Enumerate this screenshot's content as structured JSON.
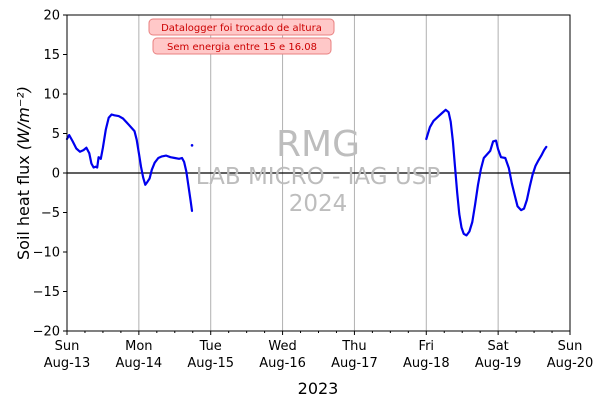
{
  "chart_data": {
    "type": "line",
    "title": "",
    "xlabel": "2023",
    "ylabel": "Soil heat flux",
    "ylabel_unit": "(W/m⁻²)",
    "ylim": [
      -20,
      20
    ],
    "yticks": [
      -20,
      -15,
      -10,
      -5,
      0,
      5,
      10,
      15,
      20
    ],
    "xlim_days": [
      0,
      7
    ],
    "xticks": [
      {
        "day": 0,
        "line1": "Sun",
        "line2": "Aug-13"
      },
      {
        "day": 1,
        "line1": "Mon",
        "line2": "Aug-14"
      },
      {
        "day": 2,
        "line1": "Tue",
        "line2": "Aug-15"
      },
      {
        "day": 3,
        "line1": "Wed",
        "line2": "Aug-16"
      },
      {
        "day": 4,
        "line1": "Thu",
        "line2": "Aug-17"
      },
      {
        "day": 5,
        "line1": "Fri",
        "line2": "Aug-18"
      },
      {
        "day": 6,
        "line1": "Sat",
        "line2": "Aug-19"
      },
      {
        "day": 7,
        "line1": "Sun",
        "line2": "Aug-20"
      }
    ],
    "grid": "vertical",
    "zero_line": true,
    "series": [
      {
        "color": "#0000ee",
        "segments": [
          [
            [
              0.0,
              4.3
            ],
            [
              0.03,
              4.8
            ],
            [
              0.08,
              4.0
            ],
            [
              0.13,
              3.1
            ],
            [
              0.18,
              2.7
            ],
            [
              0.23,
              2.9
            ],
            [
              0.27,
              3.2
            ],
            [
              0.31,
              2.5
            ],
            [
              0.34,
              1.2
            ],
            [
              0.37,
              0.7
            ],
            [
              0.4,
              0.8
            ],
            [
              0.42,
              0.7
            ],
            [
              0.44,
              2.0
            ],
            [
              0.47,
              1.8
            ],
            [
              0.5,
              3.2
            ],
            [
              0.54,
              5.5
            ],
            [
              0.58,
              7.0
            ],
            [
              0.62,
              7.4
            ],
            [
              0.66,
              7.3
            ],
            [
              0.72,
              7.2
            ],
            [
              0.78,
              6.9
            ],
            [
              0.84,
              6.3
            ],
            [
              0.9,
              5.7
            ],
            [
              0.94,
              5.3
            ],
            [
              0.97,
              4.2
            ],
            [
              1.0,
              2.5
            ],
            [
              1.03,
              0.8
            ],
            [
              1.06,
              -0.6
            ],
            [
              1.09,
              -1.5
            ],
            [
              1.12,
              -1.1
            ],
            [
              1.15,
              -0.7
            ],
            [
              1.18,
              0.4
            ],
            [
              1.22,
              1.3
            ],
            [
              1.27,
              1.9
            ],
            [
              1.32,
              2.1
            ],
            [
              1.38,
              2.2
            ],
            [
              1.44,
              2.0
            ],
            [
              1.5,
              1.9
            ],
            [
              1.56,
              1.8
            ],
            [
              1.6,
              1.9
            ],
            [
              1.63,
              1.4
            ],
            [
              1.66,
              0.2
            ],
            [
              1.69,
              -1.6
            ],
            [
              1.72,
              -3.5
            ],
            [
              1.74,
              -4.8
            ]
          ],
          [
            [
              1.74,
              3.5
            ]
          ],
          [
            [
              5.0,
              4.3
            ],
            [
              5.05,
              5.8
            ],
            [
              5.1,
              6.6
            ],
            [
              5.16,
              7.1
            ],
            [
              5.22,
              7.6
            ],
            [
              5.27,
              8.0
            ],
            [
              5.31,
              7.7
            ],
            [
              5.34,
              6.5
            ],
            [
              5.37,
              4.0
            ],
            [
              5.4,
              0.8
            ],
            [
              5.43,
              -2.5
            ],
            [
              5.46,
              -5.2
            ],
            [
              5.49,
              -6.9
            ],
            [
              5.52,
              -7.7
            ],
            [
              5.56,
              -7.9
            ],
            [
              5.6,
              -7.4
            ],
            [
              5.64,
              -6.2
            ],
            [
              5.68,
              -4.0
            ],
            [
              5.72,
              -1.5
            ],
            [
              5.76,
              0.5
            ],
            [
              5.8,
              1.9
            ],
            [
              5.85,
              2.4
            ],
            [
              5.89,
              2.8
            ],
            [
              5.93,
              4.0
            ],
            [
              5.97,
              4.1
            ],
            [
              6.0,
              3.0
            ],
            [
              6.04,
              2.0
            ],
            [
              6.1,
              1.9
            ],
            [
              6.15,
              0.6
            ],
            [
              6.19,
              -1.3
            ],
            [
              6.23,
              -2.8
            ],
            [
              6.27,
              -4.2
            ],
            [
              6.32,
              -4.7
            ],
            [
              6.36,
              -4.5
            ],
            [
              6.4,
              -3.4
            ],
            [
              6.44,
              -1.7
            ],
            [
              6.48,
              -0.2
            ],
            [
              6.52,
              0.9
            ],
            [
              6.56,
              1.6
            ],
            [
              6.6,
              2.2
            ],
            [
              6.64,
              2.9
            ],
            [
              6.67,
              3.3
            ]
          ]
        ]
      }
    ],
    "watermark": {
      "line1": "RMG",
      "line2": "LAB MICRO - IAG USP",
      "line3": "2024"
    },
    "annotations": [
      "Datalogger foi trocado de altura",
      "Sem energia entre 15 e 16.08"
    ]
  }
}
